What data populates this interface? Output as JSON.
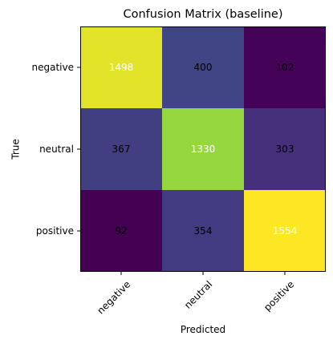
{
  "chart_data": {
    "type": "heatmap",
    "title": "Confusion Matrix (baseline)",
    "xlabel": "Predicted",
    "ylabel": "True",
    "x_categories": [
      "negative",
      "neutral",
      "positive"
    ],
    "y_categories": [
      "negative",
      "neutral",
      "positive"
    ],
    "values": [
      [
        1498,
        400,
        102
      ],
      [
        367,
        1330,
        303
      ],
      [
        92,
        354,
        1554
      ]
    ],
    "colormap": "viridis",
    "grid": false,
    "text_color_light": "#ffffff",
    "text_color_dark": "#000000"
  }
}
